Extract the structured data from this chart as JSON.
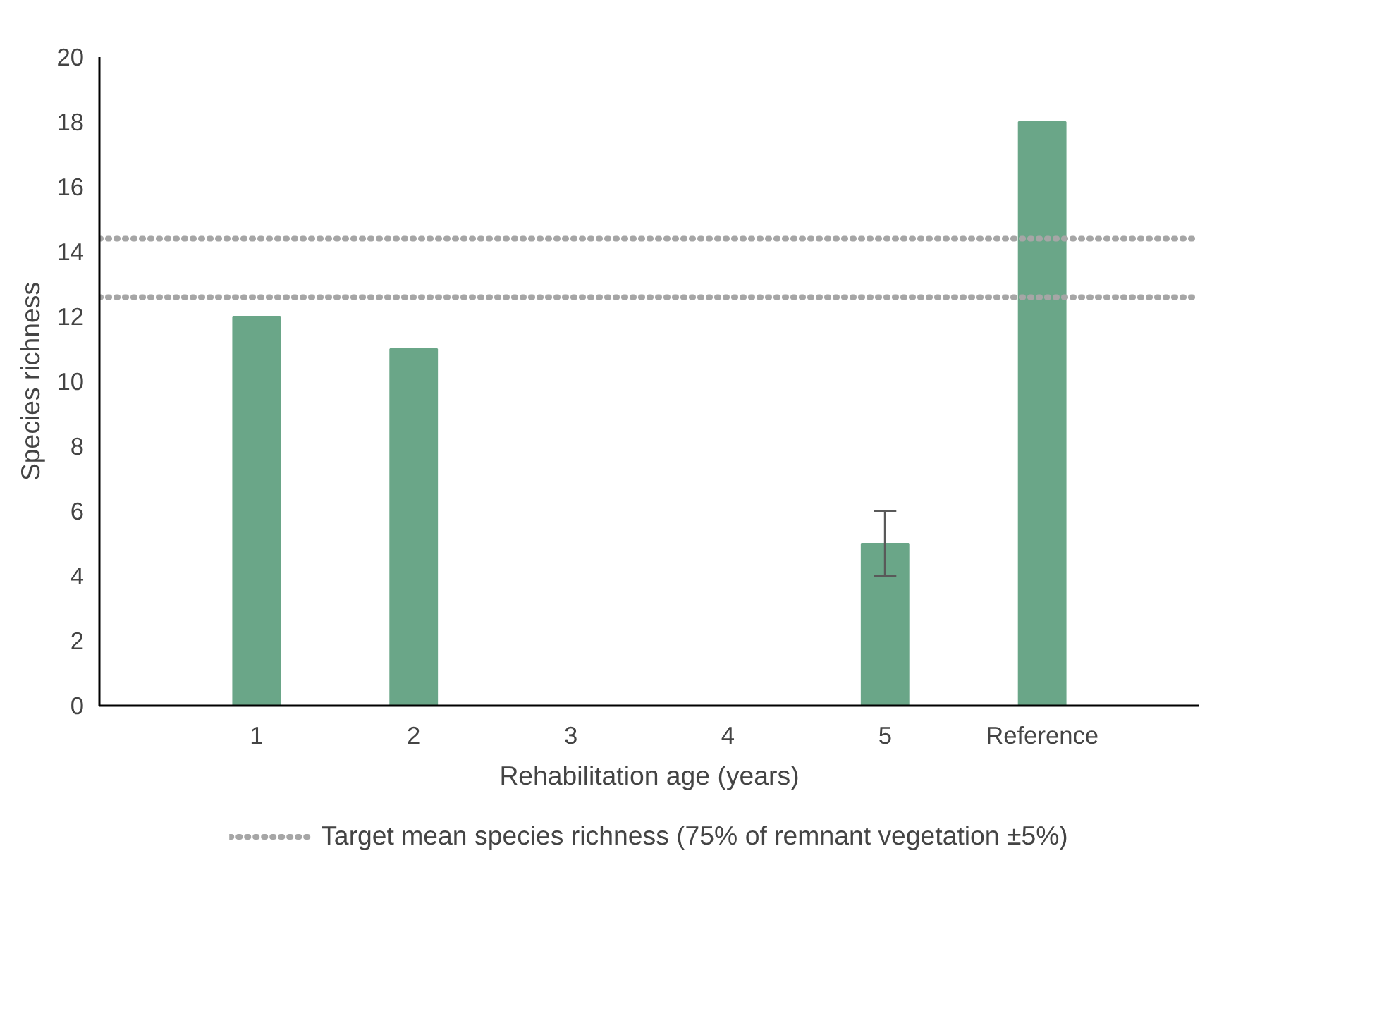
{
  "chart_data": {
    "type": "bar",
    "xlabel": "Rehabilitation age (years)",
    "ylabel": "Species richness",
    "categories": [
      "1",
      "2",
      "3",
      "4",
      "5",
      "Reference"
    ],
    "values": [
      12,
      11,
      null,
      null,
      5,
      18
    ],
    "errors": [
      null,
      null,
      null,
      null,
      1,
      null
    ],
    "color": "#6aa688",
    "ylim": [
      0,
      20
    ],
    "yticks": [
      0,
      2,
      4,
      6,
      8,
      10,
      12,
      14,
      16,
      18,
      20
    ],
    "ref_lines": [
      {
        "axis": "y",
        "value": 14.4,
        "label": "Target mean species richness (75% of remnant vegetation ±5%)",
        "color": "#a6a6a6",
        "line_style": "dotted"
      },
      {
        "axis": "y",
        "value": 12.6,
        "label": null,
        "color": "#a6a6a6",
        "line_style": "dotted"
      }
    ],
    "grid": false,
    "legend": "bottom"
  }
}
